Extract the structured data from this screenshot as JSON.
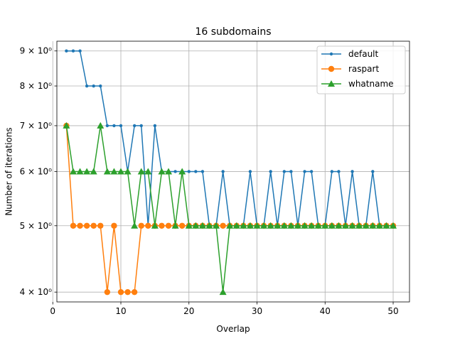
{
  "chart_data": {
    "type": "line",
    "title": "16 subdomains",
    "xlabel": "Overlap",
    "ylabel": "Number of iterations",
    "xlim": [
      0.6,
      52.4
    ],
    "ylim": [
      3.87,
      9.3
    ],
    "yscale": "log",
    "grid": true,
    "legend_position": "top-right",
    "xticks": [
      0,
      10,
      20,
      30,
      40,
      50
    ],
    "xtick_labels": [
      "0",
      "10",
      "20",
      "30",
      "40",
      "50"
    ],
    "yticks": [
      4,
      5,
      6,
      7,
      8,
      9
    ],
    "ytick_labels": [
      "4 × 10⁰",
      "5 × 10⁰",
      "6 × 10⁰",
      "7 × 10⁰",
      "8 × 10⁰",
      "9 × 10⁰"
    ],
    "x": [
      2,
      3,
      4,
      5,
      6,
      7,
      8,
      9,
      10,
      11,
      12,
      13,
      14,
      15,
      16,
      17,
      18,
      19,
      20,
      21,
      22,
      23,
      24,
      25,
      26,
      27,
      28,
      29,
      30,
      31,
      32,
      33,
      34,
      35,
      36,
      37,
      38,
      39,
      40,
      41,
      42,
      43,
      44,
      45,
      46,
      47,
      48,
      49,
      50
    ],
    "series": [
      {
        "name": "default",
        "color": "#1f77b4",
        "marker": "dot",
        "values": [
          9,
          9,
          9,
          8,
          8,
          8,
          7,
          7,
          7,
          6,
          7,
          7,
          5,
          7,
          6,
          6,
          6,
          6,
          6,
          6,
          6,
          5,
          5,
          6,
          5,
          5,
          5,
          6,
          5,
          5,
          6,
          5,
          6,
          6,
          5,
          6,
          6,
          5,
          5,
          6,
          6,
          5,
          6,
          5,
          5,
          6,
          5,
          5,
          5
        ]
      },
      {
        "name": "raspart",
        "color": "#ff7f0e",
        "marker": "circle",
        "values": [
          7,
          5,
          5,
          5,
          5,
          5,
          4,
          5,
          4,
          4,
          4,
          5,
          5,
          5,
          5,
          5,
          5,
          5,
          5,
          5,
          5,
          5,
          5,
          5,
          5,
          5,
          5,
          5,
          5,
          5,
          5,
          5,
          5,
          5,
          5,
          5,
          5,
          5,
          5,
          5,
          5,
          5,
          5,
          5,
          5,
          5,
          5,
          5,
          5
        ]
      },
      {
        "name": "whatname",
        "color": "#2ca02c",
        "marker": "triangle",
        "values": [
          7,
          6,
          6,
          6,
          6,
          7,
          6,
          6,
          6,
          6,
          5,
          6,
          6,
          5,
          6,
          6,
          5,
          6,
          5,
          5,
          5,
          5,
          5,
          4,
          5,
          5,
          5,
          5,
          5,
          5,
          5,
          5,
          5,
          5,
          5,
          5,
          5,
          5,
          5,
          5,
          5,
          5,
          5,
          5,
          5,
          5,
          5,
          5,
          5
        ]
      }
    ]
  }
}
